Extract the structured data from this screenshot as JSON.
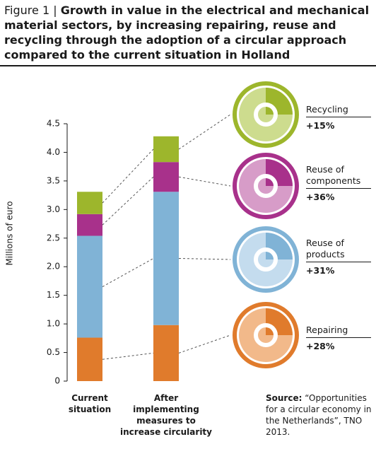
{
  "chart_data": {
    "type": "stacked-bar",
    "figure_label": "Figure 1 |",
    "title": "Growth in value in the electrical and mechanical material sectors, by increasing repairing, reuse and recycling through the adoption of a circular approach compared to the current situation in Holland",
    "y_label": "Millions of euro",
    "categories": [
      "Current situation",
      "After implementing measures to increase circularity"
    ],
    "series": [
      {
        "name": "Repairing",
        "color": "#e07b2c",
        "light": "#f2b98a",
        "values": [
          0.76,
          0.98
        ],
        "growth_label": "+28%"
      },
      {
        "name": "Reuse of products",
        "color": "#80b3d6",
        "light": "#c4dcee",
        "values": [
          1.78,
          2.33
        ],
        "growth_label": "+31%"
      },
      {
        "name": "Reuse of components",
        "color": "#a8318b",
        "light": "#d79cc8",
        "values": [
          0.38,
          0.52
        ],
        "growth_label": "+36%"
      },
      {
        "name": "Recycling",
        "color": "#9db62c",
        "light": "#cddc8e",
        "values": [
          0.39,
          0.45
        ],
        "growth_label": "+15%"
      }
    ],
    "ylim": [
      0,
      4.5
    ],
    "yticks": [
      0,
      0.5,
      {
        "value": 1,
        "label": "1.0"
      },
      1.5,
      {
        "value": 2,
        "label": "2.0"
      },
      2.5,
      {
        "value": 3,
        "label": "3.0"
      },
      3.5,
      {
        "value": 4,
        "label": "4.0"
      },
      4.5
    ],
    "source": {
      "label": "Source:",
      "text": "“Opportunities for a circular economy in the Netherlands”, TNO 2013."
    }
  }
}
